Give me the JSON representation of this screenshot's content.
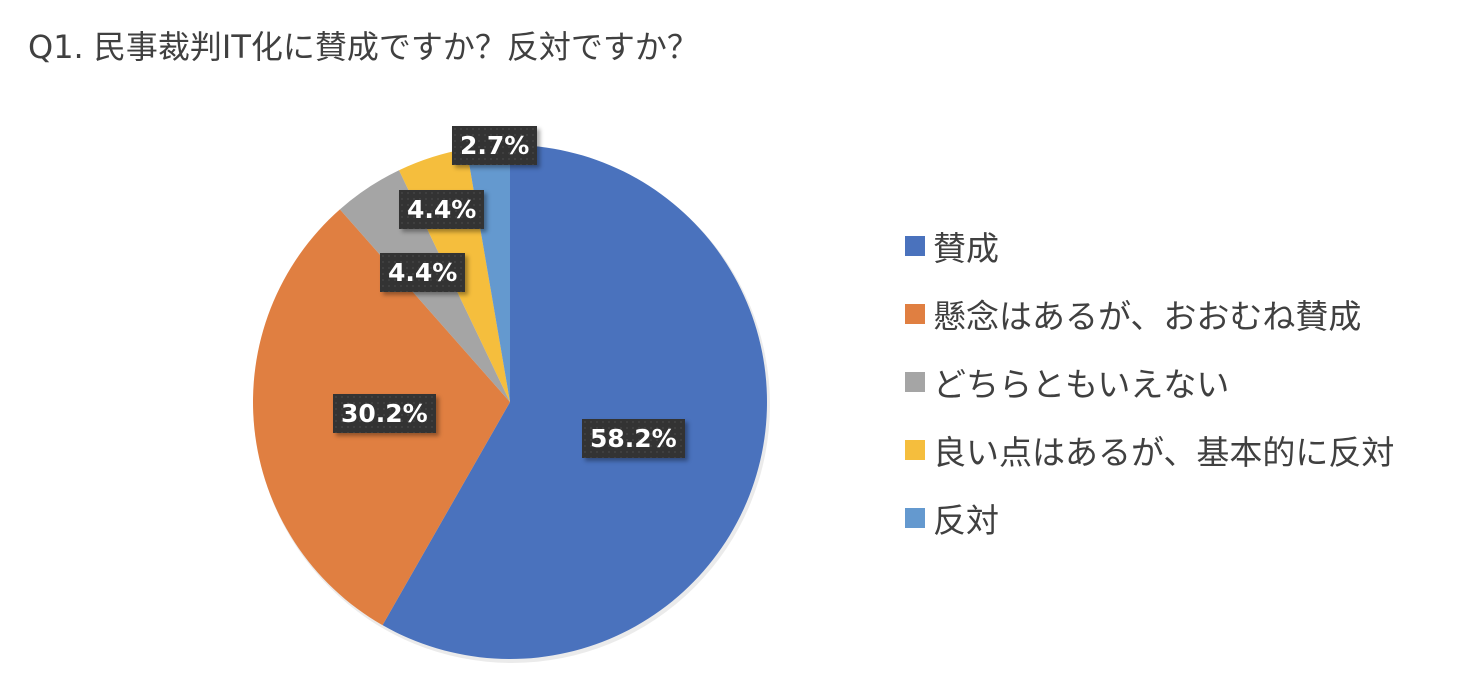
{
  "title": "Q1. 民事裁判IT化に賛成ですか？反対ですか？",
  "chart_data": {
    "type": "pie",
    "title": "Q1. 民事裁判IT化に賛成ですか？反対ですか？",
    "categories": [
      "賛成",
      "懸念はあるが、おおむね賛成",
      "どちらともいえない",
      "良い点はあるが、基本的に反対",
      "反対"
    ],
    "values": [
      58.2,
      30.2,
      4.4,
      4.4,
      2.7
    ],
    "value_labels": [
      "58.2%",
      "30.2%",
      "4.4%",
      "4.4%",
      "2.7%"
    ],
    "colors": [
      "#4a72bd",
      "#e07f41",
      "#a5a5a5",
      "#f5be3d",
      "#6499cf"
    ],
    "start_angle_deg": 0,
    "direction": "clockwise",
    "legend_position": "right"
  },
  "legend": {
    "items": [
      {
        "label": "賛成",
        "color": "#4a72bd"
      },
      {
        "label": "懸念はあるが、おおむね賛成",
        "color": "#e07f41"
      },
      {
        "label": "どちらともいえない",
        "color": "#a5a5a5"
      },
      {
        "label": "良い点はあるが、基本的に反対",
        "color": "#f5be3d"
      },
      {
        "label": "反対",
        "color": "#6499cf"
      }
    ]
  },
  "labels": [
    "58.2%",
    "30.2%",
    "4.4%",
    "4.4%",
    "2.7%"
  ]
}
